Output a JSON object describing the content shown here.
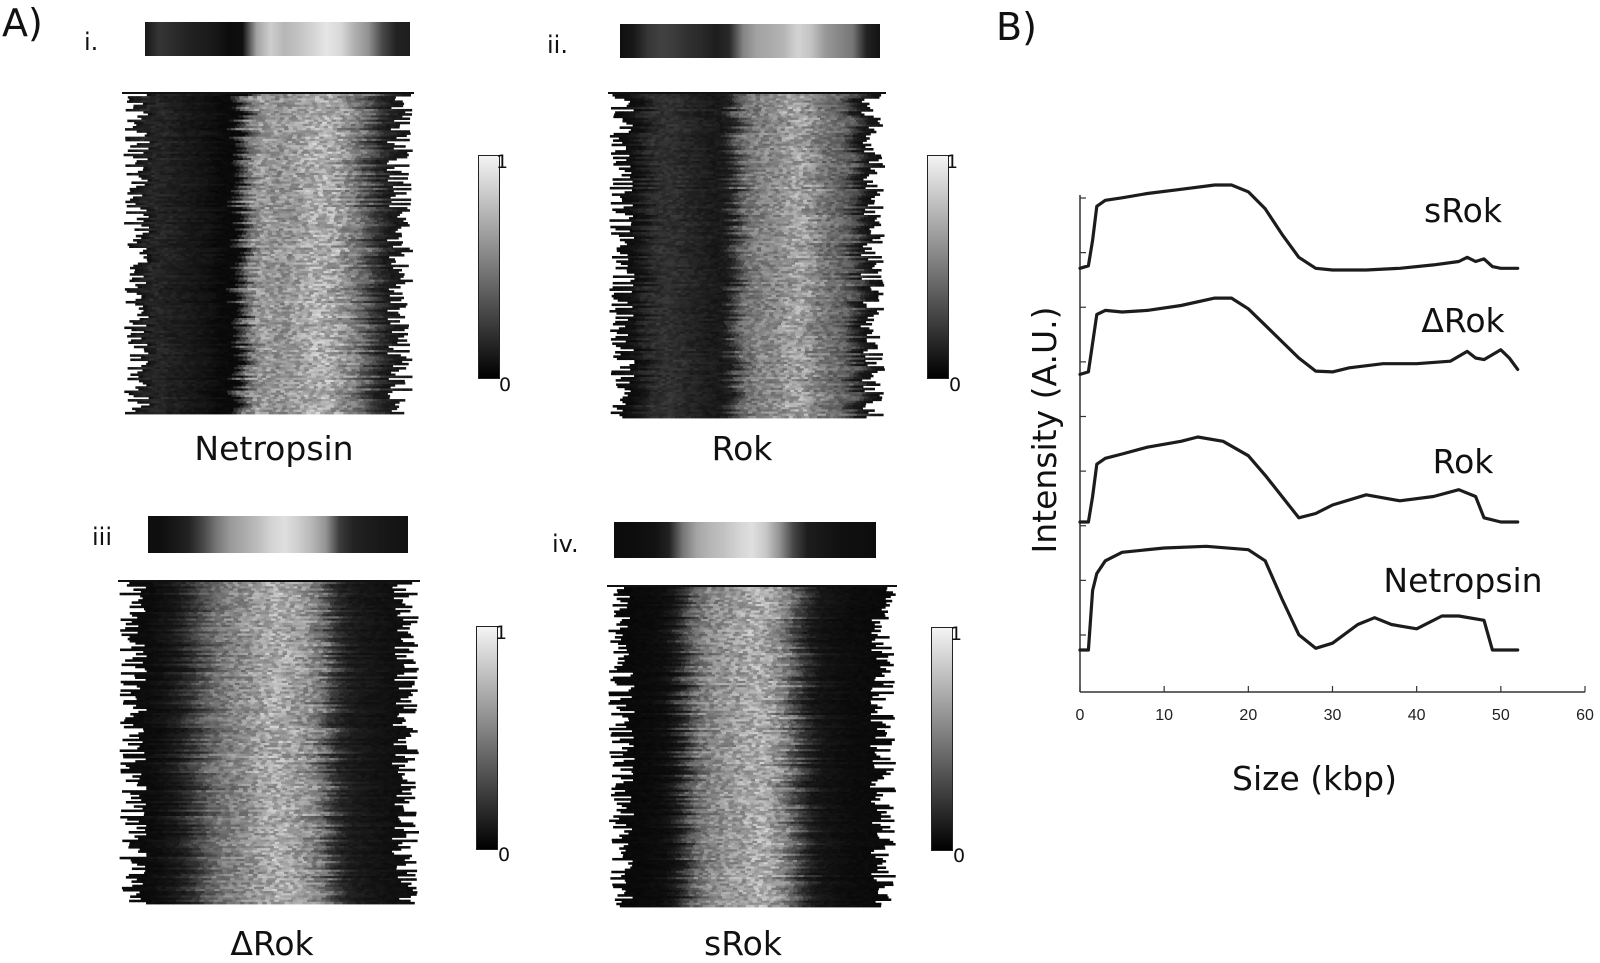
{
  "figure": {
    "panel_a_label": "A)",
    "panel_b_label": "B)"
  },
  "colorbar": {
    "max_label": "1",
    "min_label": "0"
  },
  "kymographs": [
    {
      "id": "i",
      "numeral": "i.",
      "name": "Netropsin",
      "profile": [
        0.08,
        0.18,
        0.15,
        0.12,
        0.1,
        0.08,
        0.04,
        0.05,
        0.55,
        0.7,
        0.62,
        0.66,
        0.72,
        0.78,
        0.74,
        0.6,
        0.5,
        0.25,
        0.12,
        0.1
      ]
    },
    {
      "id": "ii",
      "numeral": "ii.",
      "name": "Rok",
      "profile": [
        0.05,
        0.08,
        0.18,
        0.22,
        0.2,
        0.16,
        0.14,
        0.1,
        0.14,
        0.45,
        0.55,
        0.58,
        0.62,
        0.72,
        0.66,
        0.52,
        0.46,
        0.4,
        0.12,
        0.06
      ]
    },
    {
      "id": "iii",
      "numeral": "iii",
      "name": "ΔRok",
      "profile": [
        0.05,
        0.05,
        0.08,
        0.12,
        0.24,
        0.4,
        0.52,
        0.58,
        0.64,
        0.72,
        0.76,
        0.7,
        0.62,
        0.5,
        0.2,
        0.12,
        0.1,
        0.08,
        0.07,
        0.06
      ]
    },
    {
      "id": "iv",
      "numeral": "iv.",
      "name": "sRok",
      "profile": [
        0.04,
        0.04,
        0.05,
        0.06,
        0.12,
        0.4,
        0.56,
        0.62,
        0.66,
        0.72,
        0.76,
        0.68,
        0.5,
        0.24,
        0.1,
        0.08,
        0.06,
        0.05,
        0.05,
        0.04
      ]
    }
  ],
  "chart_data": {
    "type": "line",
    "xlabel": "Size (kbp)",
    "ylabel": "Intensity (A.U.)",
    "xlim": [
      0,
      60
    ],
    "xticks": [
      0,
      10,
      20,
      30,
      40,
      50,
      60
    ],
    "y_tick_marks": 9,
    "grid": false,
    "series": [
      {
        "name": "sRok",
        "offset": 3,
        "points": [
          [
            0,
            0.02
          ],
          [
            1,
            0.05
          ],
          [
            1.5,
            0.35
          ],
          [
            2,
            0.75
          ],
          [
            3,
            0.82
          ],
          [
            5,
            0.85
          ],
          [
            8,
            0.9
          ],
          [
            12,
            0.95
          ],
          [
            16,
            1.0
          ],
          [
            18,
            1.0
          ],
          [
            20,
            0.92
          ],
          [
            22,
            0.72
          ],
          [
            24,
            0.42
          ],
          [
            26,
            0.15
          ],
          [
            28,
            0.02
          ],
          [
            30,
            0.0
          ],
          [
            34,
            0.0
          ],
          [
            38,
            0.02
          ],
          [
            42,
            0.06
          ],
          [
            45,
            0.1
          ],
          [
            46,
            0.15
          ],
          [
            47,
            0.1
          ],
          [
            48,
            0.13
          ],
          [
            49,
            0.04
          ],
          [
            50,
            0.02
          ],
          [
            52,
            0.02
          ]
        ]
      },
      {
        "name": "ΔRok",
        "offset": 2,
        "points": [
          [
            0,
            0.02
          ],
          [
            1,
            0.05
          ],
          [
            1.5,
            0.4
          ],
          [
            2,
            0.75
          ],
          [
            3,
            0.8
          ],
          [
            5,
            0.78
          ],
          [
            8,
            0.8
          ],
          [
            12,
            0.86
          ],
          [
            16,
            0.95
          ],
          [
            18,
            0.95
          ],
          [
            20,
            0.82
          ],
          [
            22,
            0.62
          ],
          [
            24,
            0.42
          ],
          [
            26,
            0.22
          ],
          [
            28,
            0.06
          ],
          [
            30,
            0.05
          ],
          [
            32,
            0.1
          ],
          [
            36,
            0.15
          ],
          [
            40,
            0.15
          ],
          [
            44,
            0.18
          ],
          [
            46,
            0.3
          ],
          [
            47,
            0.22
          ],
          [
            48,
            0.2
          ],
          [
            50,
            0.32
          ],
          [
            51,
            0.22
          ],
          [
            52,
            0.08
          ]
        ]
      },
      {
        "name": "Rok",
        "offset": 1,
        "points": [
          [
            0,
            0.0
          ],
          [
            1,
            0.0
          ],
          [
            1.5,
            0.3
          ],
          [
            2,
            0.68
          ],
          [
            3,
            0.75
          ],
          [
            5,
            0.8
          ],
          [
            8,
            0.88
          ],
          [
            12,
            0.95
          ],
          [
            14,
            1.0
          ],
          [
            17,
            0.95
          ],
          [
            20,
            0.78
          ],
          [
            22,
            0.55
          ],
          [
            24,
            0.3
          ],
          [
            26,
            0.05
          ],
          [
            28,
            0.1
          ],
          [
            30,
            0.2
          ],
          [
            34,
            0.32
          ],
          [
            38,
            0.25
          ],
          [
            42,
            0.3
          ],
          [
            45,
            0.38
          ],
          [
            47,
            0.3
          ],
          [
            48,
            0.05
          ],
          [
            50,
            0.0
          ],
          [
            52,
            0.0
          ]
        ]
      },
      {
        "name": "Netropsin",
        "offset": 0,
        "points": [
          [
            0,
            0.0
          ],
          [
            1,
            0.0
          ],
          [
            1.5,
            0.7
          ],
          [
            2,
            0.9
          ],
          [
            3,
            1.05
          ],
          [
            5,
            1.15
          ],
          [
            10,
            1.2
          ],
          [
            15,
            1.22
          ],
          [
            20,
            1.18
          ],
          [
            22,
            1.05
          ],
          [
            24,
            0.6
          ],
          [
            26,
            0.18
          ],
          [
            28,
            0.02
          ],
          [
            30,
            0.08
          ],
          [
            33,
            0.3
          ],
          [
            35,
            0.38
          ],
          [
            37,
            0.3
          ],
          [
            40,
            0.25
          ],
          [
            43,
            0.4
          ],
          [
            45,
            0.4
          ],
          [
            48,
            0.35
          ],
          [
            49,
            0.0
          ],
          [
            52,
            0.0
          ]
        ]
      }
    ]
  }
}
